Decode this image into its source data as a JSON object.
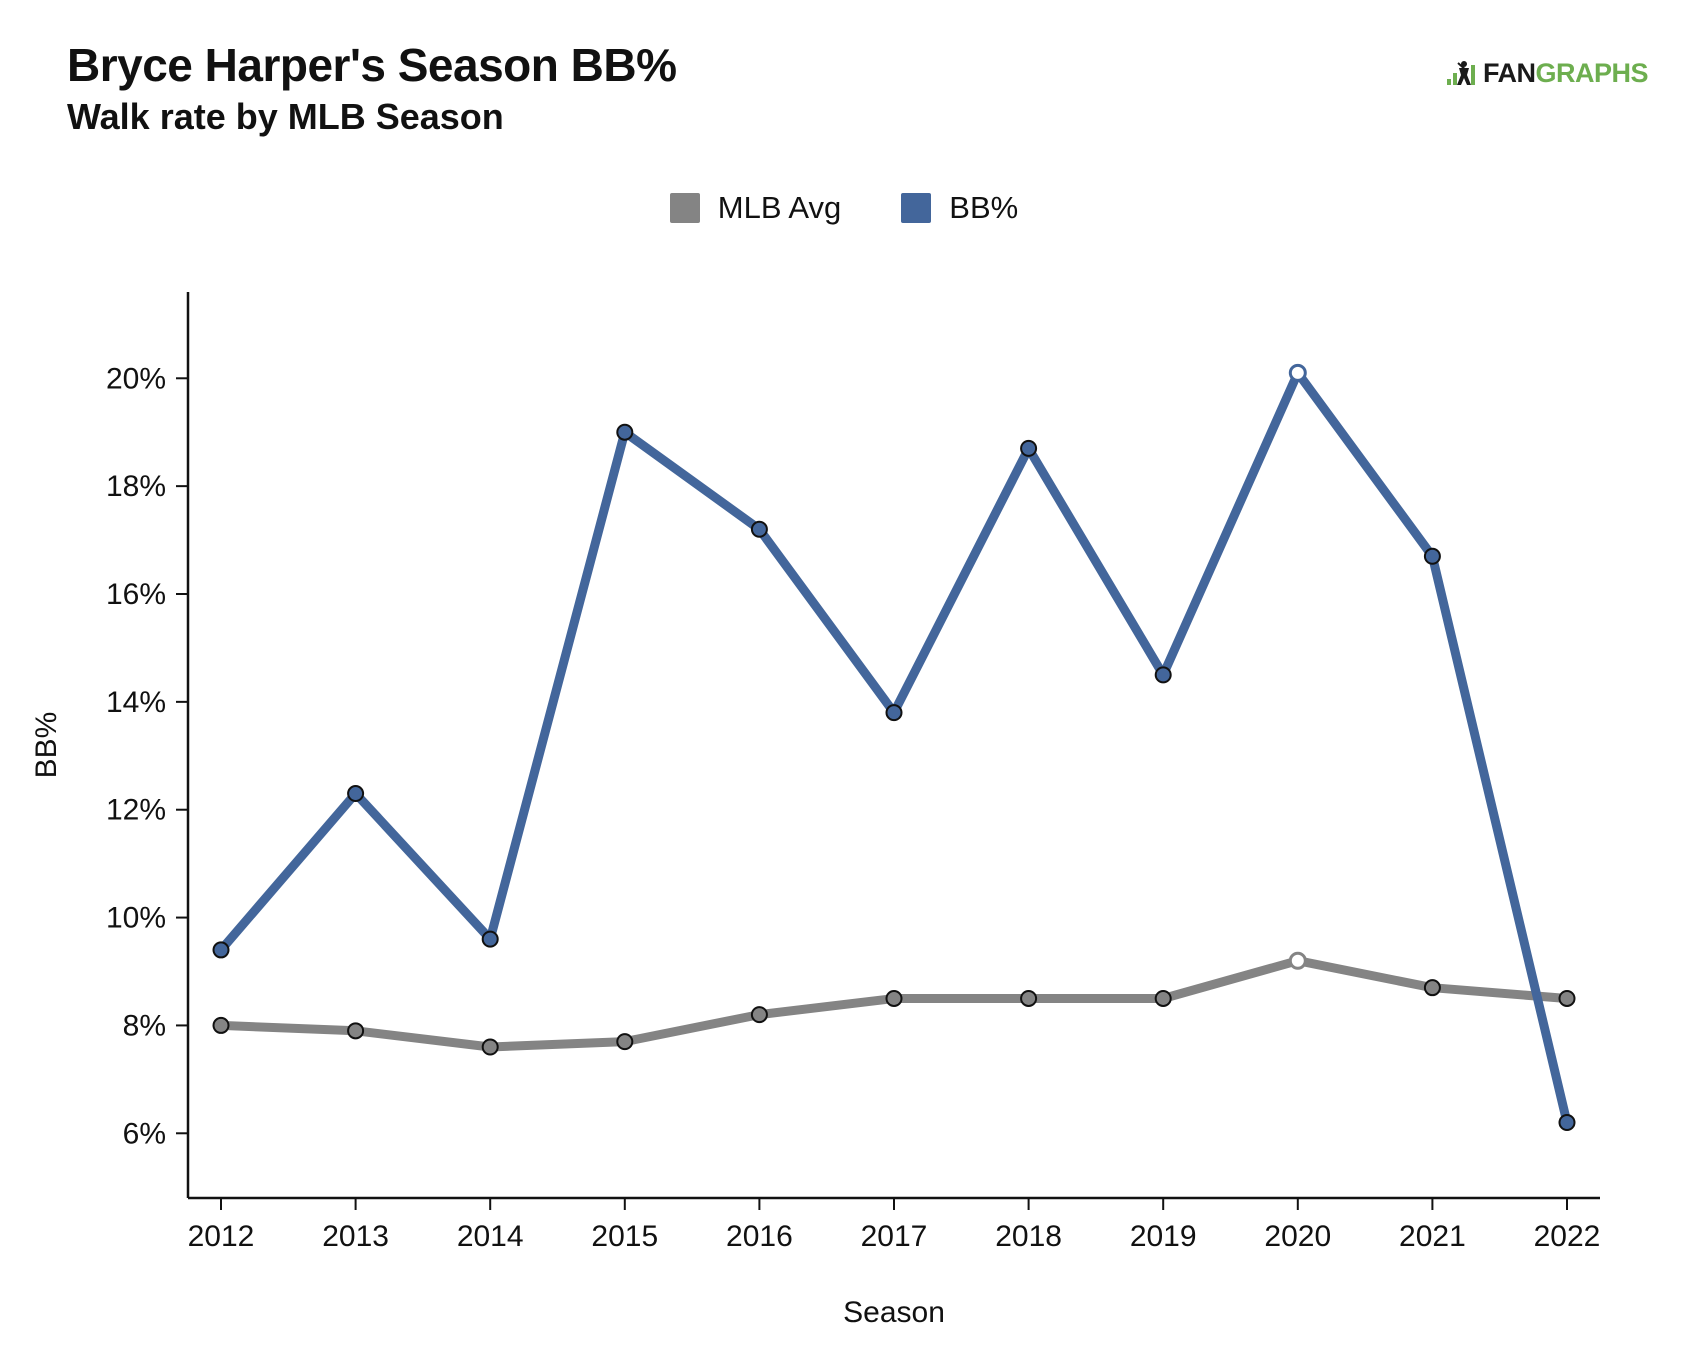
{
  "header": {
    "title": "Bryce Harper's Season BB%",
    "subtitle": "Walk rate by MLB Season"
  },
  "logo": {
    "fan_text": "FAN",
    "graphs_text": "GRAPHS",
    "icon": "fangraphs-batter-icon"
  },
  "colors": {
    "bb_series": "#43669b",
    "avg_series": "#848484",
    "logo_green": "#6dae4f"
  },
  "chart_data": {
    "type": "line",
    "title": "Bryce Harper's Season BB%",
    "subtitle": "Walk rate by MLB Season",
    "xlabel": "Season",
    "ylabel": "BB%",
    "x": [
      2012,
      2013,
      2014,
      2015,
      2016,
      2017,
      2018,
      2019,
      2020,
      2021,
      2022
    ],
    "ylim": [
      4.8,
      21.6
    ],
    "yticks": [
      6,
      8,
      10,
      12,
      14,
      16,
      18,
      20
    ],
    "ytick_labels": [
      "6%",
      "8%",
      "10%",
      "12%",
      "14%",
      "16%",
      "18%",
      "20%"
    ],
    "legend_position": "top-center",
    "grid": false,
    "highlight_x": 2020,
    "series": [
      {
        "name": "MLB Avg",
        "color": "#848484",
        "values": [
          8.0,
          7.9,
          7.6,
          7.7,
          8.2,
          8.5,
          8.5,
          8.5,
          9.2,
          8.7,
          8.5
        ]
      },
      {
        "name": "BB%",
        "color": "#43669b",
        "values": [
          9.4,
          12.3,
          9.6,
          19.0,
          17.2,
          13.8,
          18.7,
          14.5,
          20.1,
          16.7,
          6.2
        ]
      }
    ]
  }
}
